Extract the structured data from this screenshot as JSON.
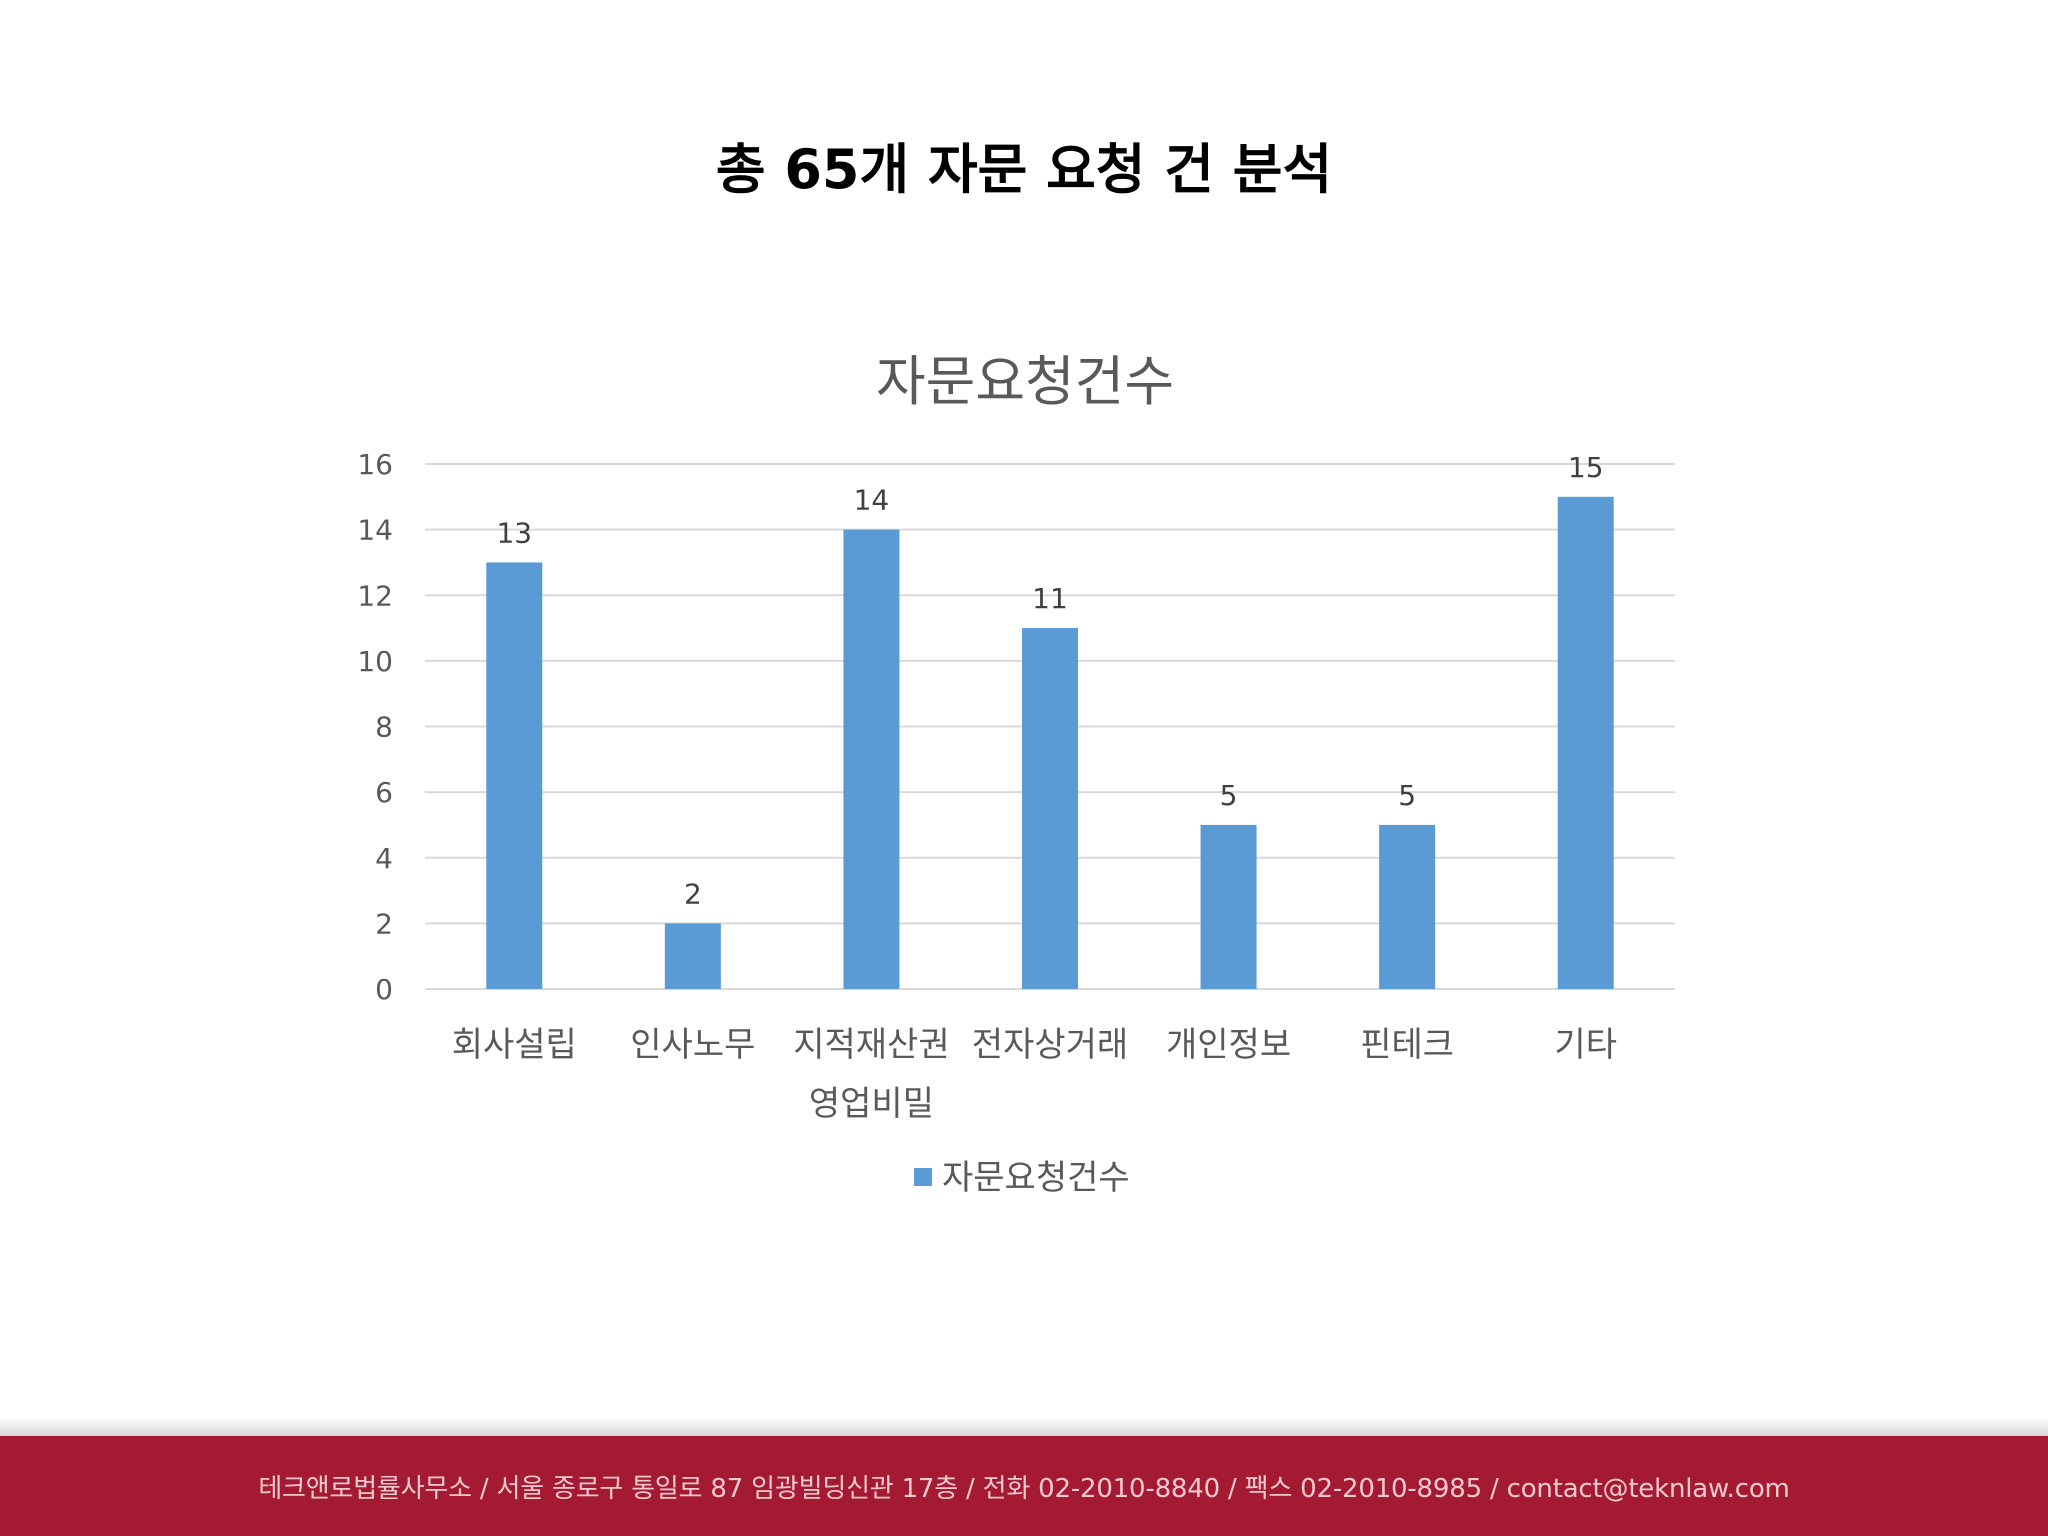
{
  "page": {
    "title": "총 65개 자문 요청 건 분석"
  },
  "chart_data": {
    "type": "bar",
    "title": "자문요청건수",
    "categories": [
      [
        "회사설립"
      ],
      [
        "인사노무"
      ],
      [
        "지적재산권",
        "영업비밀"
      ],
      [
        "전자상거래"
      ],
      [
        "개인정보"
      ],
      [
        "핀테크"
      ],
      [
        "기타"
      ]
    ],
    "series": [
      {
        "name": "자문요청건수",
        "values": [
          13,
          2,
          14,
          11,
          5,
          5,
          15
        ],
        "color": "#5b9bd5"
      }
    ],
    "ylim": [
      0,
      16
    ],
    "yticks": [
      0,
      2,
      4,
      6,
      8,
      10,
      12,
      14,
      16
    ],
    "grid": true,
    "data_labels": true,
    "legend": "bottom",
    "xlabel": "",
    "ylabel": ""
  },
  "footer": {
    "text": "테크앤로법률사무소 / 서울 종로구 통일로 87 임광빌딩신관 17층 / 전화 02-2010-8840 / 팩스 02-2010-8985 / contact@teknlaw.com",
    "background_color": "#a41a33"
  }
}
